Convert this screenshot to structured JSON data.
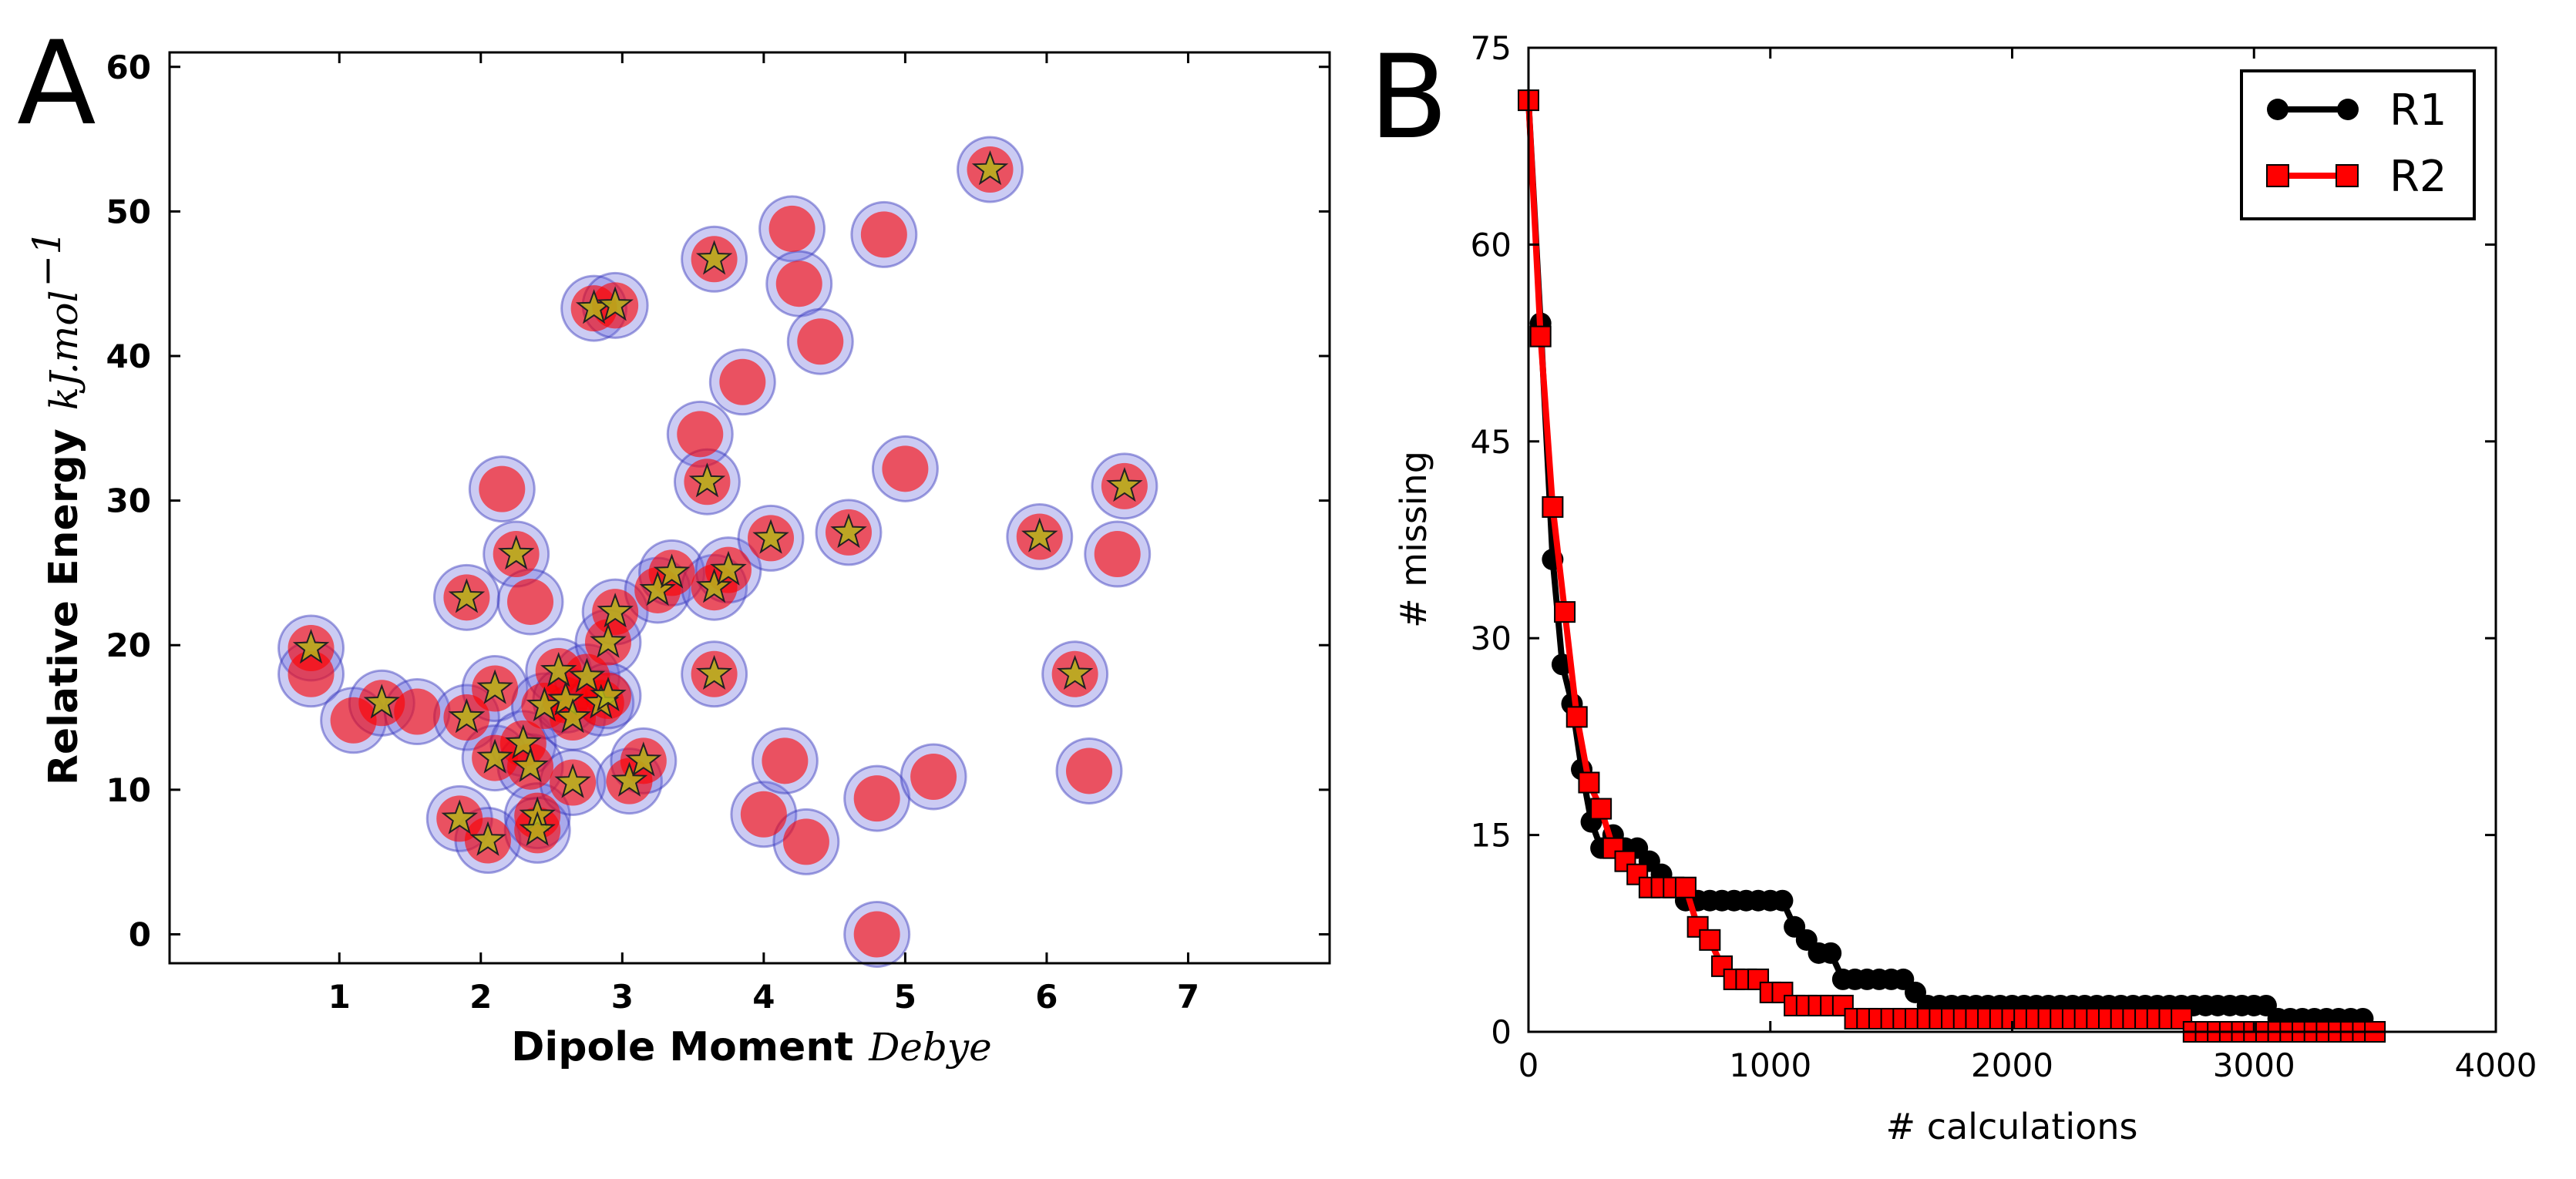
{
  "panels": {
    "a_label": "A",
    "b_label": "B"
  },
  "chart_data": [
    {
      "type": "scatter",
      "xlabel": "Dipole Moment",
      "xunit": "Debye",
      "ylabel": "Relative Energy",
      "yunit": "kJ.mol",
      "yunit_exp": "−1",
      "xlim": [
        -0.2,
        8.0
      ],
      "ylim": [
        -2,
        61
      ],
      "xticks": [
        "1",
        "2",
        "3",
        "4",
        "5",
        "6",
        "7"
      ],
      "yticks": [
        "0",
        "10",
        "20",
        "30",
        "40",
        "50",
        "60"
      ],
      "colors": {
        "outer_circle": "#6b6bdd",
        "inner_circle": "#ff0000",
        "star": "#b5b51a"
      },
      "points": [
        {
          "x": 0.8,
          "y": 19.8,
          "star": true
        },
        {
          "x": 0.8,
          "y": 18.0,
          "star": false
        },
        {
          "x": 1.1,
          "y": 14.8,
          "star": false
        },
        {
          "x": 1.3,
          "y": 16.0,
          "star": true
        },
        {
          "x": 1.55,
          "y": 15.4,
          "star": false
        },
        {
          "x": 1.9,
          "y": 23.3,
          "star": true
        },
        {
          "x": 1.9,
          "y": 15.0,
          "star": true
        },
        {
          "x": 1.85,
          "y": 8.0,
          "star": true
        },
        {
          "x": 2.05,
          "y": 6.5,
          "star": true
        },
        {
          "x": 2.1,
          "y": 12.2,
          "star": true
        },
        {
          "x": 2.1,
          "y": 17.0,
          "star": true
        },
        {
          "x": 2.15,
          "y": 30.8,
          "star": false
        },
        {
          "x": 2.25,
          "y": 26.3,
          "star": true
        },
        {
          "x": 2.3,
          "y": 13.2,
          "star": true
        },
        {
          "x": 2.35,
          "y": 23.0,
          "star": false
        },
        {
          "x": 2.35,
          "y": 11.6,
          "star": true
        },
        {
          "x": 2.4,
          "y": 8.2,
          "star": true
        },
        {
          "x": 2.4,
          "y": 7.2,
          "star": true
        },
        {
          "x": 2.45,
          "y": 15.8,
          "star": true
        },
        {
          "x": 2.55,
          "y": 18.2,
          "star": true
        },
        {
          "x": 2.6,
          "y": 16.2,
          "star": true
        },
        {
          "x": 2.65,
          "y": 15.0,
          "star": true
        },
        {
          "x": 2.65,
          "y": 10.5,
          "star": true
        },
        {
          "x": 2.75,
          "y": 17.8,
          "star": true
        },
        {
          "x": 2.8,
          "y": 43.3,
          "star": true
        },
        {
          "x": 2.85,
          "y": 16.0,
          "star": true
        },
        {
          "x": 2.9,
          "y": 20.2,
          "star": true
        },
        {
          "x": 2.9,
          "y": 16.5,
          "star": true
        },
        {
          "x": 2.95,
          "y": 22.3,
          "star": true
        },
        {
          "x": 2.95,
          "y": 43.5,
          "star": true
        },
        {
          "x": 3.05,
          "y": 10.6,
          "star": true
        },
        {
          "x": 3.15,
          "y": 12.0,
          "star": true
        },
        {
          "x": 3.25,
          "y": 23.8,
          "star": true
        },
        {
          "x": 3.35,
          "y": 25.0,
          "star": true
        },
        {
          "x": 3.55,
          "y": 34.6,
          "star": false
        },
        {
          "x": 3.6,
          "y": 31.3,
          "star": true
        },
        {
          "x": 3.65,
          "y": 24.0,
          "star": true
        },
        {
          "x": 3.65,
          "y": 18.0,
          "star": true
        },
        {
          "x": 3.65,
          "y": 46.7,
          "star": true
        },
        {
          "x": 3.75,
          "y": 25.2,
          "star": true
        },
        {
          "x": 3.85,
          "y": 38.2,
          "star": false
        },
        {
          "x": 4.0,
          "y": 8.3,
          "star": false
        },
        {
          "x": 4.05,
          "y": 27.4,
          "star": true
        },
        {
          "x": 4.15,
          "y": 12.0,
          "star": false
        },
        {
          "x": 4.2,
          "y": 48.8,
          "star": false
        },
        {
          "x": 4.25,
          "y": 45.0,
          "star": false
        },
        {
          "x": 4.3,
          "y": 6.4,
          "star": false
        },
        {
          "x": 4.4,
          "y": 41.0,
          "star": false
        },
        {
          "x": 4.6,
          "y": 27.8,
          "star": true
        },
        {
          "x": 4.8,
          "y": 0.0,
          "star": false
        },
        {
          "x": 4.8,
          "y": 9.4,
          "star": false
        },
        {
          "x": 4.85,
          "y": 48.4,
          "star": false
        },
        {
          "x": 5.0,
          "y": 32.2,
          "star": false
        },
        {
          "x": 5.2,
          "y": 10.9,
          "star": false
        },
        {
          "x": 5.6,
          "y": 52.9,
          "star": true
        },
        {
          "x": 5.95,
          "y": 27.5,
          "star": true
        },
        {
          "x": 6.2,
          "y": 18.0,
          "star": true
        },
        {
          "x": 6.3,
          "y": 11.3,
          "star": false
        },
        {
          "x": 6.5,
          "y": 26.3,
          "star": false
        },
        {
          "x": 6.55,
          "y": 31.0,
          "star": true
        }
      ]
    },
    {
      "type": "line",
      "xlabel": "# calculations",
      "ylabel": "# missing",
      "xlim": [
        0,
        4000
      ],
      "ylim": [
        0,
        75
      ],
      "xticks": [
        "0",
        "1000",
        "2000",
        "3000",
        "4000"
      ],
      "yticks": [
        "0",
        "15",
        "30",
        "45",
        "60",
        "75"
      ],
      "legend_position": "top-right",
      "series": [
        {
          "name": "R1",
          "color": "#000000",
          "marker": "circle",
          "points": [
            [
              0,
              71
            ],
            [
              50,
              54
            ],
            [
              100,
              36
            ],
            [
              140,
              28
            ],
            [
              180,
              25
            ],
            [
              220,
              20
            ],
            [
              260,
              16
            ],
            [
              300,
              14
            ],
            [
              350,
              15
            ],
            [
              400,
              14
            ],
            [
              450,
              14
            ],
            [
              500,
              13
            ],
            [
              550,
              12
            ],
            [
              600,
              11
            ],
            [
              650,
              10
            ],
            [
              700,
              10
            ],
            [
              750,
              10
            ],
            [
              800,
              10
            ],
            [
              850,
              10
            ],
            [
              900,
              10
            ],
            [
              950,
              10
            ],
            [
              1000,
              10
            ],
            [
              1050,
              10
            ],
            [
              1100,
              8
            ],
            [
              1150,
              7
            ],
            [
              1200,
              6
            ],
            [
              1250,
              6
            ],
            [
              1300,
              4
            ],
            [
              1350,
              4
            ],
            [
              1400,
              4
            ],
            [
              1450,
              4
            ],
            [
              1500,
              4
            ],
            [
              1550,
              4
            ],
            [
              1600,
              3
            ],
            [
              1650,
              2
            ],
            [
              1700,
              2
            ],
            [
              1750,
              2
            ],
            [
              1800,
              2
            ],
            [
              1850,
              2
            ],
            [
              1900,
              2
            ],
            [
              1950,
              2
            ],
            [
              2000,
              2
            ],
            [
              2050,
              2
            ],
            [
              2100,
              2
            ],
            [
              2150,
              2
            ],
            [
              2200,
              2
            ],
            [
              2250,
              2
            ],
            [
              2300,
              2
            ],
            [
              2350,
              2
            ],
            [
              2400,
              2
            ],
            [
              2450,
              2
            ],
            [
              2500,
              2
            ],
            [
              2550,
              2
            ],
            [
              2600,
              2
            ],
            [
              2650,
              2
            ],
            [
              2700,
              2
            ],
            [
              2750,
              2
            ],
            [
              2800,
              2
            ],
            [
              2850,
              2
            ],
            [
              2900,
              2
            ],
            [
              2950,
              2
            ],
            [
              3000,
              2
            ],
            [
              3050,
              2
            ],
            [
              3100,
              1
            ],
            [
              3150,
              1
            ],
            [
              3200,
              1
            ],
            [
              3250,
              1
            ],
            [
              3300,
              1
            ],
            [
              3350,
              1
            ],
            [
              3400,
              1
            ],
            [
              3450,
              1
            ],
            [
              3500,
              0
            ]
          ]
        },
        {
          "name": "R2",
          "color": "#ff0000",
          "marker": "square",
          "points": [
            [
              0,
              71
            ],
            [
              50,
              53
            ],
            [
              100,
              40
            ],
            [
              150,
              32
            ],
            [
              200,
              24
            ],
            [
              250,
              19
            ],
            [
              300,
              17
            ],
            [
              350,
              14
            ],
            [
              400,
              13
            ],
            [
              450,
              12
            ],
            [
              500,
              11
            ],
            [
              550,
              11
            ],
            [
              600,
              11
            ],
            [
              650,
              11
            ],
            [
              700,
              8
            ],
            [
              750,
              7
            ],
            [
              800,
              5
            ],
            [
              850,
              4
            ],
            [
              900,
              4
            ],
            [
              950,
              4
            ],
            [
              1000,
              3
            ],
            [
              1050,
              3
            ],
            [
              1100,
              2
            ],
            [
              1150,
              2
            ],
            [
              1200,
              2
            ],
            [
              1250,
              2
            ],
            [
              1300,
              2
            ],
            [
              1350,
              1
            ],
            [
              1400,
              1
            ],
            [
              1450,
              1
            ],
            [
              1500,
              1
            ],
            [
              1550,
              1
            ],
            [
              1600,
              1
            ],
            [
              1650,
              1
            ],
            [
              1700,
              1
            ],
            [
              1750,
              1
            ],
            [
              1800,
              1
            ],
            [
              1850,
              1
            ],
            [
              1900,
              1
            ],
            [
              1950,
              1
            ],
            [
              2000,
              1
            ],
            [
              2050,
              1
            ],
            [
              2100,
              1
            ],
            [
              2150,
              1
            ],
            [
              2200,
              1
            ],
            [
              2250,
              1
            ],
            [
              2300,
              1
            ],
            [
              2350,
              1
            ],
            [
              2400,
              1
            ],
            [
              2450,
              1
            ],
            [
              2500,
              1
            ],
            [
              2550,
              1
            ],
            [
              2600,
              1
            ],
            [
              2650,
              1
            ],
            [
              2700,
              1
            ],
            [
              2750,
              0
            ],
            [
              2800,
              0
            ],
            [
              2850,
              0
            ],
            [
              2900,
              0
            ],
            [
              2950,
              0
            ],
            [
              3000,
              0
            ],
            [
              3050,
              0
            ],
            [
              3100,
              0
            ],
            [
              3150,
              0
            ],
            [
              3200,
              0
            ],
            [
              3250,
              0
            ],
            [
              3300,
              0
            ],
            [
              3350,
              0
            ],
            [
              3400,
              0
            ],
            [
              3450,
              0
            ],
            [
              3500,
              0
            ]
          ]
        }
      ]
    }
  ]
}
